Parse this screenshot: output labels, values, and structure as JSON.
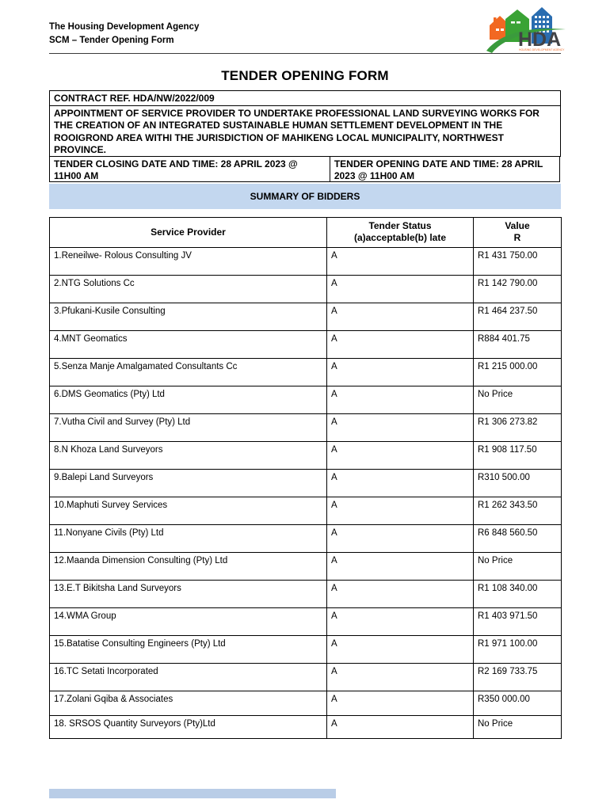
{
  "header": {
    "org_line1": "The Housing Development Agency",
    "org_line2": "SCM – Tender Opening Form",
    "logo_text": "HDA",
    "logo_subtext": "HOUSING DEVELOPMENT AGENCY"
  },
  "title": "TENDER OPENING FORM",
  "form": {
    "contract_ref": "CONTRACT REF. HDA/NW/2022/009",
    "appointment": "APPOINTMENT OF SERVICE PROVIDER TO UNDERTAKE PROFESSIONAL LAND SURVEYING WORKS FOR THE CREATION OF AN INTEGRATED SUSTAINABLE HUMAN SETTLEMENT DEVELOPMENT IN THE ROOIGROND AREA WITHI THE JURISDICTION OF MAHIKENG LOCAL MUNICIPALITY, NORTHWEST PROVINCE.",
    "closing_date": "TENDER CLOSING DATE AND TIME: 28 APRIL 2023 @ 11H00 AM",
    "opening_date": "TENDER OPENING DATE AND TIME: 28 APRIL 2023 @ 11H00 AM",
    "summary_title": "SUMMARY OF BIDDERS"
  },
  "table": {
    "headers": {
      "provider": "Service Provider",
      "status_line1": "Tender Status",
      "status_line2": "(a)acceptable(b) late",
      "value_line1": "Value",
      "value_line2": "R"
    },
    "rows": [
      {
        "provider": "1.Reneilwe- Rolous Consulting JV",
        "status": "A",
        "value": "R1 431 750.00"
      },
      {
        "provider": "2.NTG Solutions Cc",
        "status": "A",
        "value": "R1 142 790.00"
      },
      {
        "provider": "3.Pfukani-Kusile Consulting",
        "status": "A",
        "value": "R1 464 237.50"
      },
      {
        "provider": "4.MNT Geomatics",
        "status": "A",
        "value": "R884 401.75"
      },
      {
        "provider": "5.Senza Manje Amalgamated Consultants Cc",
        "status": "A",
        "value": "R1 215 000.00"
      },
      {
        "provider": "6.DMS Geomatics (Pty) Ltd",
        "status": "A",
        "value": "No Price"
      },
      {
        "provider": "7.Vutha Civil and Survey (Pty) Ltd",
        "status": "A",
        "value": "R1 306 273.82"
      },
      {
        "provider": "8.N Khoza Land Surveyors",
        "status": "A",
        "value": "R1 908 117.50"
      },
      {
        "provider": "9.Balepi Land Surveyors",
        "status": "A",
        "value": "R310 500.00"
      },
      {
        "provider": "10.Maphuti Survey Services",
        "status": "A",
        "value": "R1 262 343.50"
      },
      {
        "provider": "11.Nonyane Civils (Pty) Ltd",
        "status": "A",
        "value": "R6 848 560.50"
      },
      {
        "provider": "12.Maanda Dimension Consulting (Pty) Ltd",
        "status": "A",
        "value": "No Price"
      },
      {
        "provider": "13.E.T Bikitsha Land Surveyors",
        "status": "A",
        "value": "R1 108 340.00"
      },
      {
        "provider": "14.WMA Group",
        "status": "A",
        "value": "R1 403 971.50"
      },
      {
        "provider": "15.Batatise Consulting Engineers (Pty) Ltd",
        "status": "A",
        "value": "R1 971 100.00"
      },
      {
        "provider": "16.TC Setati Incorporated",
        "status": "A",
        "value": "R2 169 733.75"
      },
      {
        "provider": "17.Zolani Gqiba & Associates",
        "status": "A",
        "value": "R350 000.00"
      },
      {
        "provider": "18. SRSOS Quantity Surveyors (Pty)Ltd",
        "status": "A",
        "value": "No Price"
      }
    ]
  },
  "colors": {
    "band_blue": "#c3d7ef",
    "footer_bar_blue": "#b9cde7",
    "logo_orange": "#f26822",
    "logo_green": "#3aa335",
    "logo_blue": "#2a6db0",
    "logo_text_gray": "#414246"
  }
}
